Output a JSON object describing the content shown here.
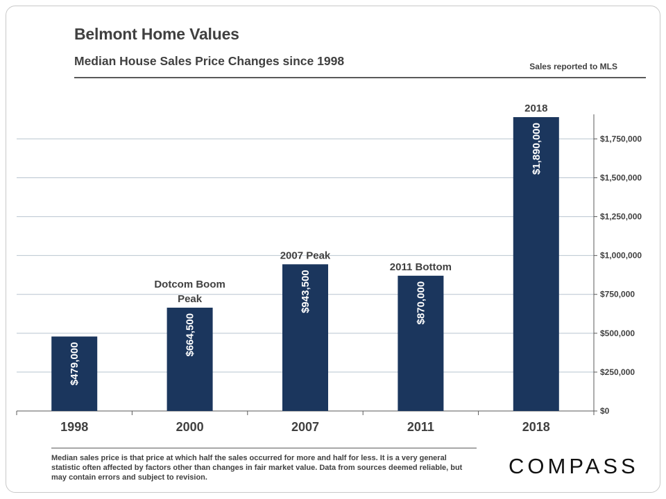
{
  "header": {
    "title": "Belmont Home Values",
    "subtitle": "Median House Sales Price Changes since 1998",
    "source_note": "Sales reported to MLS"
  },
  "footer": {
    "note": "Median sales price is that price at which half the sales occurred for more and half for less. It is a very general statistic often affected by factors other than changes in fair market value. Data from sources deemed reliable, but may contain errors and subject to revision.",
    "brand": "COMPASS"
  },
  "colors": {
    "bar": "#1b365d",
    "text": "#404040",
    "grid": "#b8c4cf"
  },
  "chart_data": {
    "type": "bar",
    "categories": [
      "1998",
      "2000",
      "2007",
      "2011",
      "2018"
    ],
    "values": [
      479000,
      664500,
      943500,
      870000,
      1890000
    ],
    "data_labels": [
      "$479,000",
      "$664,500",
      "$943,500",
      "$870,000",
      "$1,890,000"
    ],
    "annotations": [
      "",
      "Dotcom Boom Peak",
      "2007 Peak",
      "2011 Bottom",
      "2018"
    ],
    "y_ticks": [
      0,
      250000,
      500000,
      750000,
      1000000,
      1250000,
      1500000,
      1750000
    ],
    "y_tick_labels": [
      "$0",
      "$250,000",
      "$500,000",
      "$750,000",
      "$1,000,000",
      "$1,250,000",
      "$1,500,000",
      "$1,750,000"
    ],
    "ylim": [
      0,
      1890000
    ],
    "y_axis_side": "right",
    "grid": true
  }
}
